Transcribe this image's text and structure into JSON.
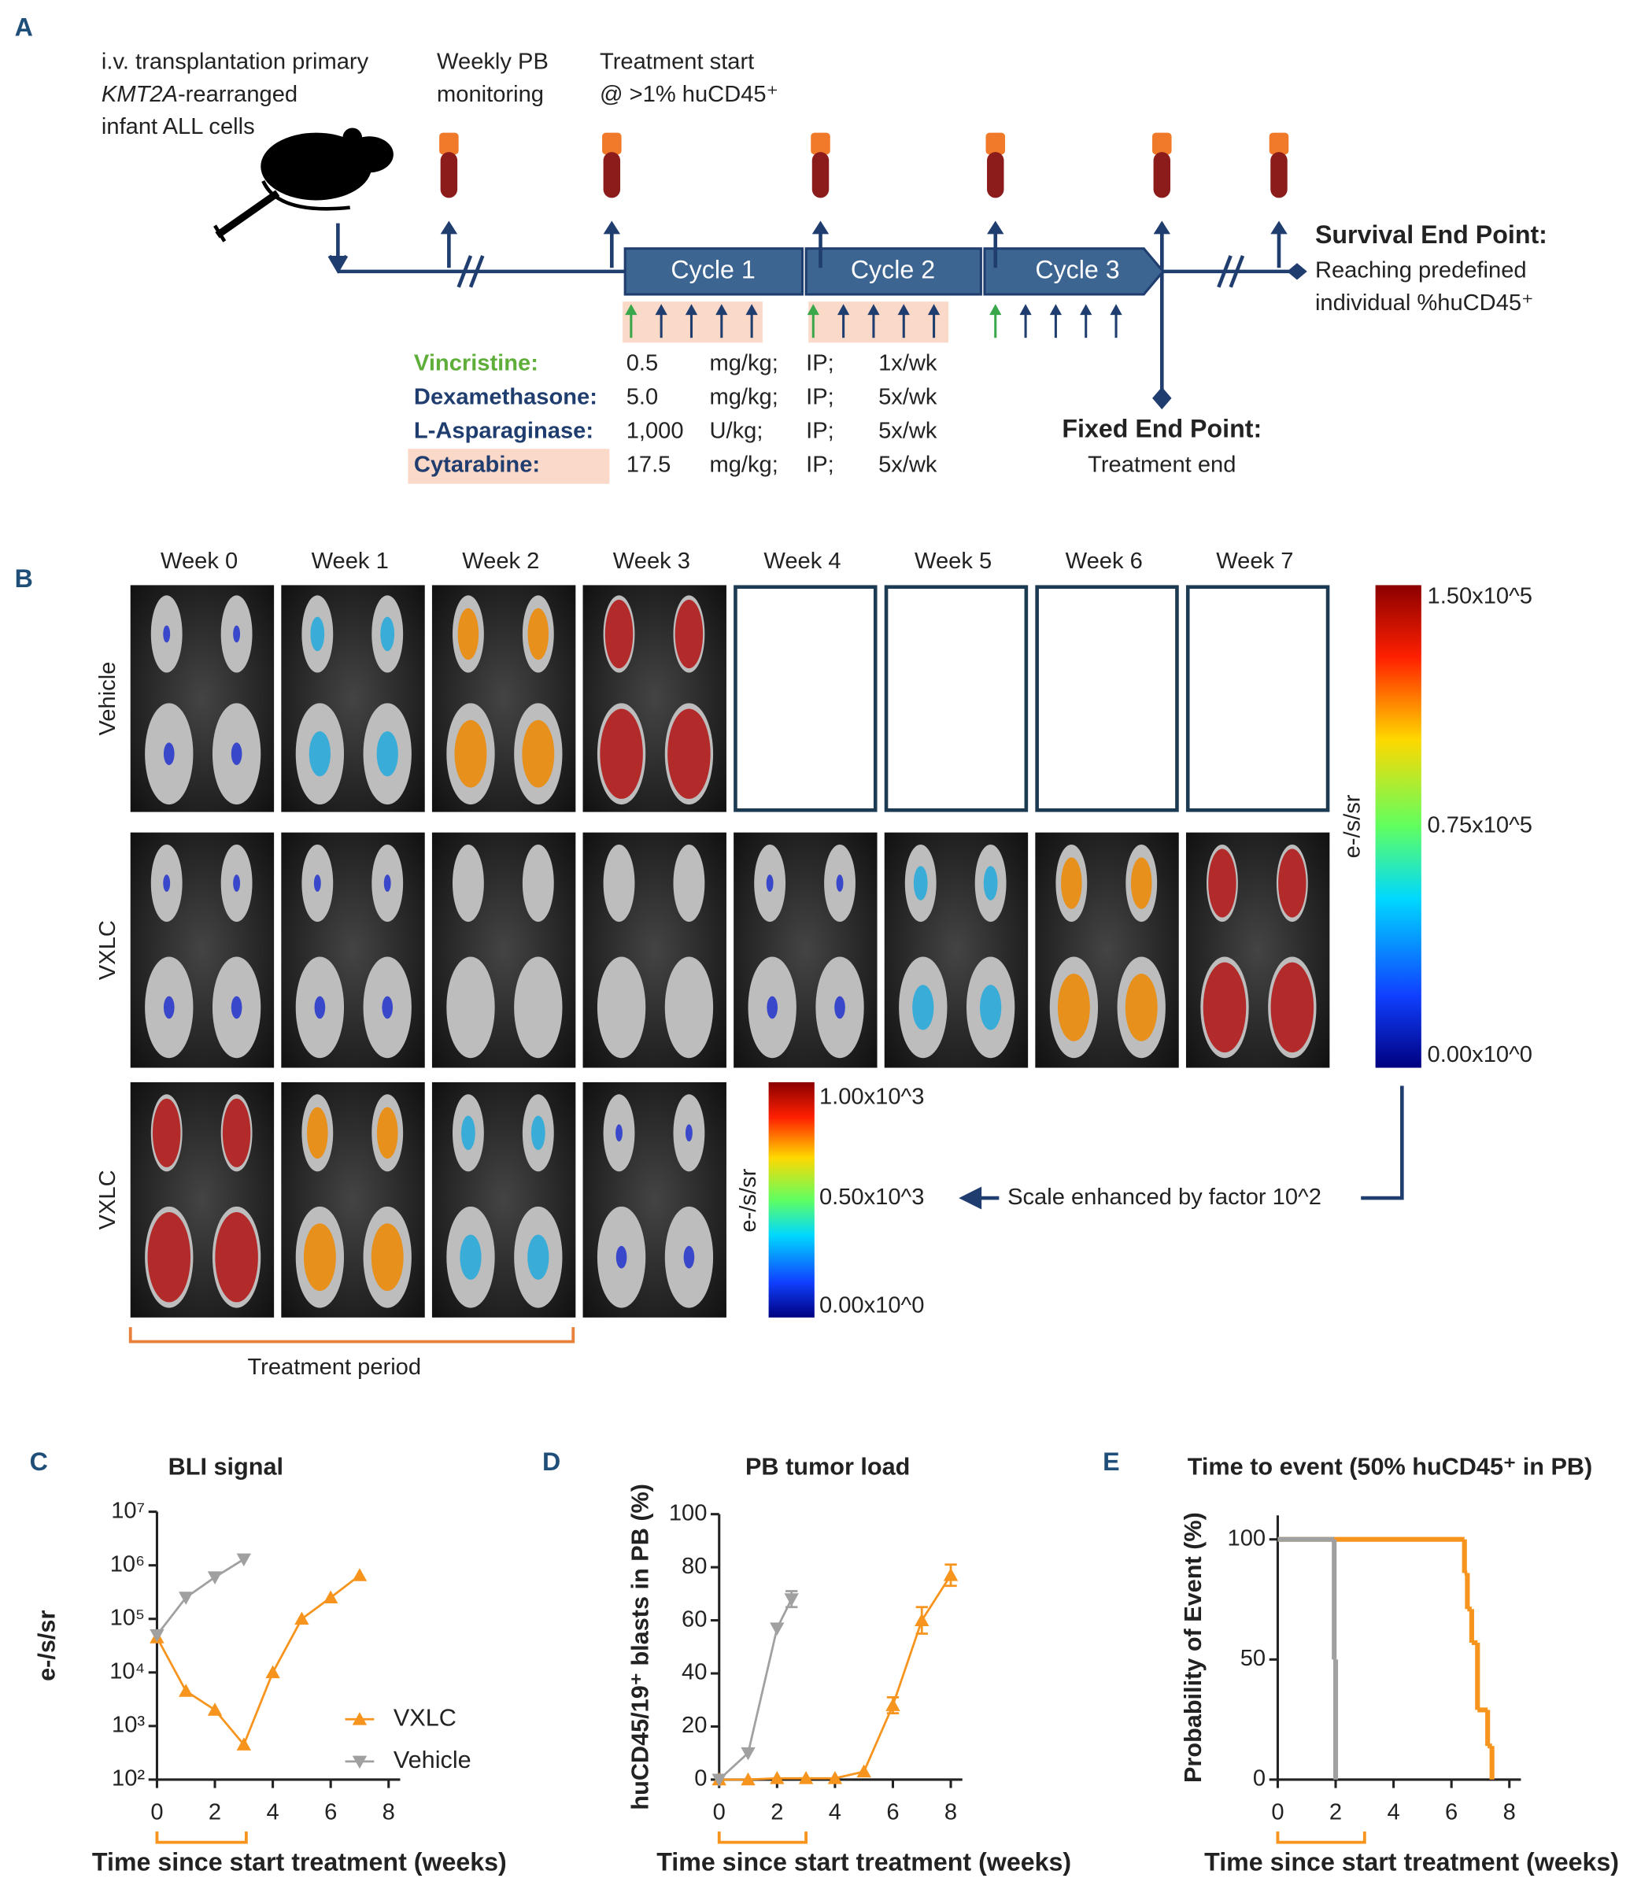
{
  "panel_a": {
    "letter": "A",
    "transplant_lines": [
      "i.v. transplantation primary",
      "infant ALL cells"
    ],
    "transplant_gene": "KMT2A",
    "transplant_gene_suffix": "-rearranged",
    "monitoring": [
      "Weekly PB",
      "monitoring"
    ],
    "treatment_start": [
      "Treatment start",
      "@ >1% huCD45⁺"
    ],
    "cycles": [
      "Cycle 1",
      "Cycle 2",
      "Cycle 3"
    ],
    "survival_end_point": {
      "title": "Survival End Point:",
      "lines": [
        "Reaching predefined",
        "individual %huCD45⁺"
      ]
    },
    "fixed_end_point": {
      "title": "Fixed End Point:",
      "text": "Treatment end"
    },
    "drugs": [
      {
        "name": "Vincristine:",
        "dose": "0.5",
        "unit": "mg/kg;",
        "route": "IP;",
        "frequency": "1x/wk"
      },
      {
        "name": "Dexamethasone:",
        "dose": "5.0",
        "unit": "mg/kg;",
        "route": "IP;",
        "frequency": "5x/wk"
      },
      {
        "name": "L-Asparaginase:",
        "dose": "1,000",
        "unit": "U/kg;",
        "route": "IP;",
        "frequency": "5x/wk"
      },
      {
        "name": "Cytarabine:",
        "dose": "17.5",
        "unit": "mg/kg;",
        "route": "IP;",
        "frequency": "5x/wk"
      }
    ]
  },
  "panel_b": {
    "letter": "B",
    "weeks": [
      "Week 0",
      "Week 1",
      "Week 2",
      "Week 3",
      "Week 4",
      "Week 5",
      "Week 6",
      "Week 7"
    ],
    "rows": [
      "Vehicle",
      "VXLC",
      "VXLC"
    ],
    "scale_main": {
      "labels": [
        "1.50x10^5",
        "0.75x10^5",
        "0.00x10^0"
      ],
      "unit": "e-/s/sr"
    },
    "scale_enhanced": {
      "labels": [
        "1.00x10^3",
        "0.50x10^3",
        "0.00x10^0"
      ],
      "unit": "e-/s/sr"
    },
    "scale_note": "Scale enhanced by factor 10^2",
    "treatment_period": "Treatment period"
  },
  "chart_data": [
    {
      "type": "line",
      "panel": "C",
      "title": "BLI signal",
      "ylabel": "e-/s/sr",
      "xlabel": "Time since start treatment (weeks)",
      "ylog": true,
      "xlim": [
        0,
        8.4
      ],
      "ylim": [
        100,
        10000000
      ],
      "xticks": [
        0,
        2,
        4,
        6,
        8
      ],
      "yticks": [
        {
          "value": 100,
          "label": "10²"
        },
        {
          "value": 1000,
          "label": "10³"
        },
        {
          "value": 10000,
          "label": "10⁴"
        },
        {
          "value": 100000,
          "label": "10⁵"
        },
        {
          "value": 1000000,
          "label": "10⁶"
        },
        {
          "value": 10000000,
          "label": "10⁷"
        }
      ],
      "legend": "lower right",
      "series": [
        {
          "name": "VXLC",
          "color": "#f7941d",
          "marker": "triangle-up",
          "x": [
            0,
            1,
            2,
            3,
            4,
            5,
            6,
            7
          ],
          "values": [
            45000,
            4500,
            2000,
            450,
            10000,
            100000,
            250000,
            650000
          ]
        },
        {
          "name": "Vehicle",
          "color": "#a0a0a0",
          "marker": "triangle-down",
          "x": [
            0,
            1,
            2,
            3
          ],
          "values": [
            50000,
            250000,
            600000,
            1300000
          ]
        }
      ]
    },
    {
      "type": "line",
      "panel": "D",
      "title": "PB tumor load",
      "ylabel": "huCD45/19⁺ blasts in PB (%)",
      "xlabel": "Time since start treatment (weeks)",
      "xlim": [
        0,
        8.4
      ],
      "ylim": [
        0,
        100
      ],
      "xticks": [
        0,
        2,
        4,
        6,
        8
      ],
      "yticks": [
        0,
        20,
        40,
        60,
        80,
        100
      ],
      "series": [
        {
          "color": "#f7941d",
          "marker": "triangle-up",
          "x": [
            0,
            1,
            2,
            3,
            4,
            5,
            6,
            7,
            8
          ],
          "values": [
            0,
            0,
            0.5,
            0.5,
            0.5,
            3,
            28,
            60,
            77
          ],
          "errors": [
            null,
            null,
            null,
            null,
            null,
            null,
            3,
            5,
            4
          ]
        },
        {
          "color": "#a0a0a0",
          "marker": "triangle-down",
          "x": [
            0,
            1,
            2,
            2.5
          ],
          "values": [
            0,
            10,
            57,
            68
          ],
          "errors": [
            null,
            null,
            null,
            3
          ]
        }
      ]
    },
    {
      "type": "step",
      "panel": "E",
      "title": "Time to event (50% huCD45⁺ in PB)",
      "ylabel": "Probability of Event (%)",
      "xlabel": "Time since start treatment (weeks)",
      "xlim": [
        0,
        8.4
      ],
      "ylim": [
        0,
        110
      ],
      "xticks": [
        0,
        2,
        4,
        6,
        8
      ],
      "yticks": [
        0,
        50,
        100
      ],
      "series": [
        {
          "color": "#f7941d",
          "x": [
            0,
            6.45,
            6.55,
            6.7,
            6.9,
            7.25,
            7.4
          ],
          "values": [
            100,
            86,
            71,
            57,
            29,
            14,
            0
          ]
        },
        {
          "color": "#a0a0a0",
          "x": [
            0,
            1.95,
            2.0
          ],
          "values": [
            100,
            50,
            0
          ]
        }
      ]
    }
  ]
}
